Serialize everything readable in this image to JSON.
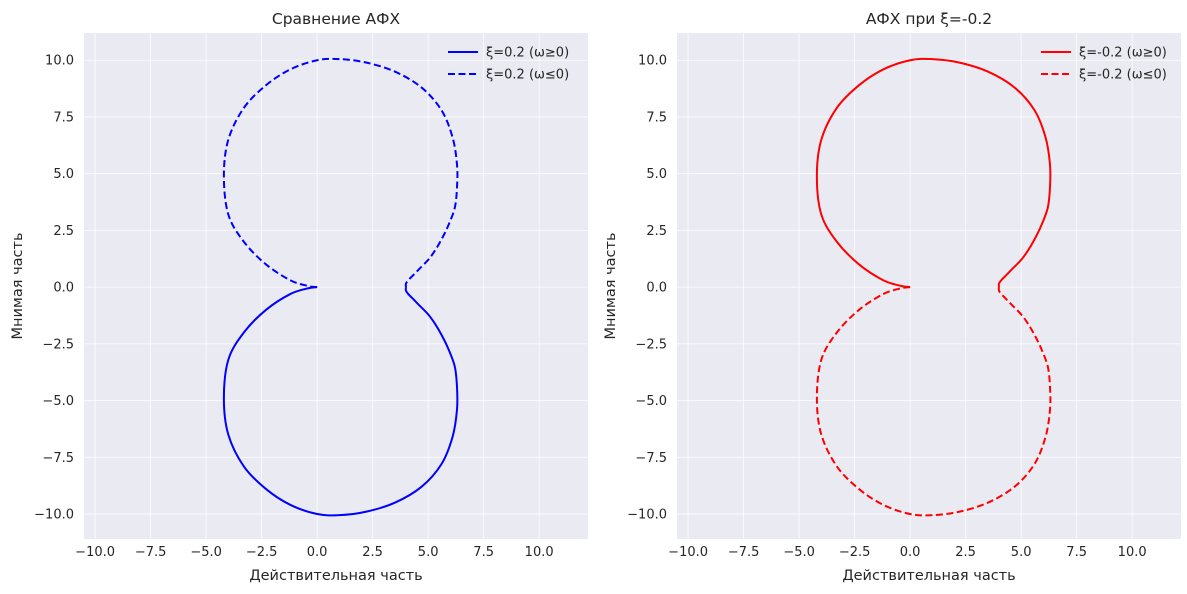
{
  "chart_data": [
    {
      "type": "line",
      "title": "Сравнение АФХ",
      "xlabel": "Действительная часть",
      "ylabel": "Мнимая часть",
      "xlim": [
        -10.5,
        12.2
      ],
      "ylim": [
        -11.1,
        11.2
      ],
      "xticks": [
        -10.0,
        -7.5,
        -5.0,
        -2.5,
        0.0,
        2.5,
        5.0,
        7.5,
        10.0
      ],
      "xtick_labels": [
        "−10.0",
        "−7.5",
        "−5.0",
        "−2.5",
        "0.0",
        "2.5",
        "5.0",
        "7.5",
        "10.0"
      ],
      "yticks": [
        -10.0,
        -7.5,
        -5.0,
        -2.5,
        0.0,
        2.5,
        5.0,
        7.5,
        10.0
      ],
      "ytick_labels": [
        "−10.0",
        "−7.5",
        "−5.0",
        "−2.5",
        "0.0",
        "2.5",
        "5.0",
        "7.5",
        "10.0"
      ],
      "grid": true,
      "legend_position": "top-right",
      "series": [
        {
          "name": "ξ=0.2 (ω≥0)",
          "color": "#0000ff",
          "dash": "solid",
          "x": [
            0.0,
            -0.4,
            -1.2,
            -2.3,
            -3.3,
            -4.0,
            -4.2,
            -4.0,
            -3.3,
            -2.3,
            -1.2,
            0.0,
            1.0,
            2.2,
            3.5,
            4.7,
            5.6,
            6.1,
            6.3,
            6.3,
            6.2,
            5.9,
            5.6,
            5.3,
            5.0,
            4.6,
            4.3,
            4.1,
            4.0,
            4.0
          ],
          "y": [
            0.0,
            -0.05,
            -0.3,
            -1.0,
            -2.0,
            -3.2,
            -4.9,
            -6.5,
            -7.9,
            -8.9,
            -9.6,
            -10.0,
            -10.05,
            -9.9,
            -9.5,
            -8.8,
            -7.8,
            -6.6,
            -5.4,
            -4.4,
            -3.5,
            -2.7,
            -2.1,
            -1.6,
            -1.2,
            -0.8,
            -0.5,
            -0.3,
            -0.15,
            0.0
          ]
        },
        {
          "name": "ξ=0.2 (ω≤0)",
          "color": "#0000ff",
          "dash": "dashed",
          "x": [
            0.0,
            -0.4,
            -1.2,
            -2.3,
            -3.3,
            -4.0,
            -4.2,
            -4.0,
            -3.3,
            -2.3,
            -1.2,
            0.0,
            1.0,
            2.2,
            3.5,
            4.7,
            5.6,
            6.1,
            6.3,
            6.3,
            6.2,
            5.9,
            5.6,
            5.3,
            5.0,
            4.6,
            4.3,
            4.1,
            4.0,
            4.0
          ],
          "y": [
            0.0,
            0.05,
            0.3,
            1.0,
            2.0,
            3.2,
            4.9,
            6.5,
            7.9,
            8.9,
            9.6,
            10.0,
            10.05,
            9.9,
            9.5,
            8.8,
            7.8,
            6.6,
            5.4,
            4.4,
            3.5,
            2.7,
            2.1,
            1.6,
            1.2,
            0.8,
            0.5,
            0.3,
            0.15,
            0.0
          ]
        }
      ]
    },
    {
      "type": "line",
      "title": "АФХ при ξ=-0.2",
      "xlabel": "Действительная часть",
      "ylabel": "Мнимая часть",
      "xlim": [
        -10.5,
        12.2
      ],
      "ylim": [
        -11.1,
        11.2
      ],
      "xticks": [
        -10.0,
        -7.5,
        -5.0,
        -2.5,
        0.0,
        2.5,
        5.0,
        7.5,
        10.0
      ],
      "xtick_labels": [
        "−10.0",
        "−7.5",
        "−5.0",
        "−2.5",
        "0.0",
        "2.5",
        "5.0",
        "7.5",
        "10.0"
      ],
      "yticks": [
        -10.0,
        -7.5,
        -5.0,
        -2.5,
        0.0,
        2.5,
        5.0,
        7.5,
        10.0
      ],
      "ytick_labels": [
        "−10.0",
        "−7.5",
        "−5.0",
        "−2.5",
        "0.0",
        "2.5",
        "5.0",
        "7.5",
        "10.0"
      ],
      "grid": true,
      "legend_position": "top-right",
      "series": [
        {
          "name": "ξ=-0.2 (ω≥0)",
          "color": "#ff0000",
          "dash": "solid",
          "x": [
            0.0,
            -0.4,
            -1.2,
            -2.3,
            -3.3,
            -4.0,
            -4.2,
            -4.0,
            -3.3,
            -2.3,
            -1.2,
            0.0,
            1.0,
            2.2,
            3.5,
            4.7,
            5.6,
            6.1,
            6.3,
            6.3,
            6.2,
            5.9,
            5.6,
            5.3,
            5.0,
            4.6,
            4.3,
            4.1,
            4.0,
            4.0
          ],
          "y": [
            0.0,
            0.05,
            0.3,
            1.0,
            2.0,
            3.2,
            4.9,
            6.5,
            7.9,
            8.9,
            9.6,
            10.0,
            10.05,
            9.9,
            9.5,
            8.8,
            7.8,
            6.6,
            5.4,
            4.4,
            3.5,
            2.7,
            2.1,
            1.6,
            1.2,
            0.8,
            0.5,
            0.3,
            0.15,
            0.0
          ]
        },
        {
          "name": "ξ=-0.2 (ω≤0)",
          "color": "#ff0000",
          "dash": "dashed",
          "x": [
            0.0,
            -0.4,
            -1.2,
            -2.3,
            -3.3,
            -4.0,
            -4.2,
            -4.0,
            -3.3,
            -2.3,
            -1.2,
            0.0,
            1.0,
            2.2,
            3.5,
            4.7,
            5.6,
            6.1,
            6.3,
            6.3,
            6.2,
            5.9,
            5.6,
            5.3,
            5.0,
            4.6,
            4.3,
            4.1,
            4.0,
            4.0
          ],
          "y": [
            0.0,
            -0.05,
            -0.3,
            -1.0,
            -2.0,
            -3.2,
            -4.9,
            -6.5,
            -7.9,
            -8.9,
            -9.6,
            -10.0,
            -10.05,
            -9.9,
            -9.5,
            -8.8,
            -7.8,
            -6.6,
            -5.4,
            -4.4,
            -3.5,
            -2.7,
            -2.1,
            -1.6,
            -1.2,
            -0.8,
            -0.5,
            -0.3,
            -0.15,
            0.0
          ]
        }
      ]
    }
  ]
}
